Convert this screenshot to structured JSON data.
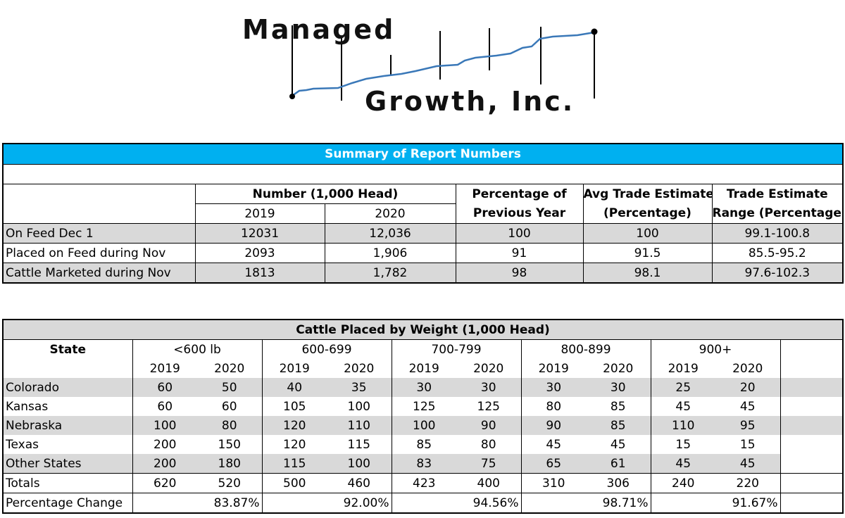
{
  "logo": {
    "line1": "Managed",
    "line2": "Growth, Inc.",
    "line_color": "#3a78b8"
  },
  "summary": {
    "title": "Summary of Report Numbers",
    "title_bg": "#00b0f0",
    "headers": {
      "number": "Number (1,000 Head)",
      "year1": "2019",
      "year2": "2020",
      "pct_prev_1": "Percentage of",
      "pct_prev_2": "Previous Year",
      "avg_est_1": "Avg Trade Estimate",
      "avg_est_2": "(Percentage)",
      "range_1": "Trade Estimate",
      "range_2": "Range (Percentage)"
    },
    "rows": [
      {
        "label": "On Feed Dec 1",
        "y2019": "12031",
        "y2020": "12,036",
        "pct": "100",
        "avg": "100",
        "range": "99.1-100.8"
      },
      {
        "label": "Placed on Feed during Nov",
        "y2019": "2093",
        "y2020": "1,906",
        "pct": "91",
        "avg": "91.5",
        "range": "85.5-95.2"
      },
      {
        "label": "Cattle Marketed during Nov",
        "y2019": "1813",
        "y2020": "1,782",
        "pct": "98",
        "avg": "98.1",
        "range": "97.6-102.3"
      }
    ]
  },
  "weight": {
    "title": "Cattle Placed by Weight (1,000 Head)",
    "state_header": "State",
    "groups": [
      "<600 lb",
      "600-699",
      "700-799",
      "800-899",
      "900+"
    ],
    "year1": "2019",
    "year2": "2020",
    "rows": [
      {
        "state": "Colorado",
        "v": [
          "60",
          "50",
          "40",
          "35",
          "30",
          "30",
          "30",
          "30",
          "25",
          "20"
        ]
      },
      {
        "state": "Kansas",
        "v": [
          "60",
          "60",
          "105",
          "100",
          "125",
          "125",
          "80",
          "85",
          "45",
          "45"
        ]
      },
      {
        "state": "Nebraska",
        "v": [
          "100",
          "80",
          "120",
          "110",
          "100",
          "90",
          "90",
          "85",
          "110",
          "95"
        ]
      },
      {
        "state": "Texas",
        "v": [
          "200",
          "150",
          "120",
          "115",
          "85",
          "80",
          "45",
          "45",
          "15",
          "15"
        ]
      },
      {
        "state": "Other States",
        "v": [
          "200",
          "180",
          "115",
          "100",
          "83",
          "75",
          "65",
          "61",
          "45",
          "45"
        ]
      }
    ],
    "totals_label": "Totals",
    "totals": [
      "620",
      "520",
      "500",
      "460",
      "423",
      "400",
      "310",
      "306",
      "240",
      "220"
    ],
    "pct_label": "Percentage Change",
    "pct": [
      "83.87%",
      "92.00%",
      "94.56%",
      "98.71%",
      "91.67%"
    ]
  }
}
